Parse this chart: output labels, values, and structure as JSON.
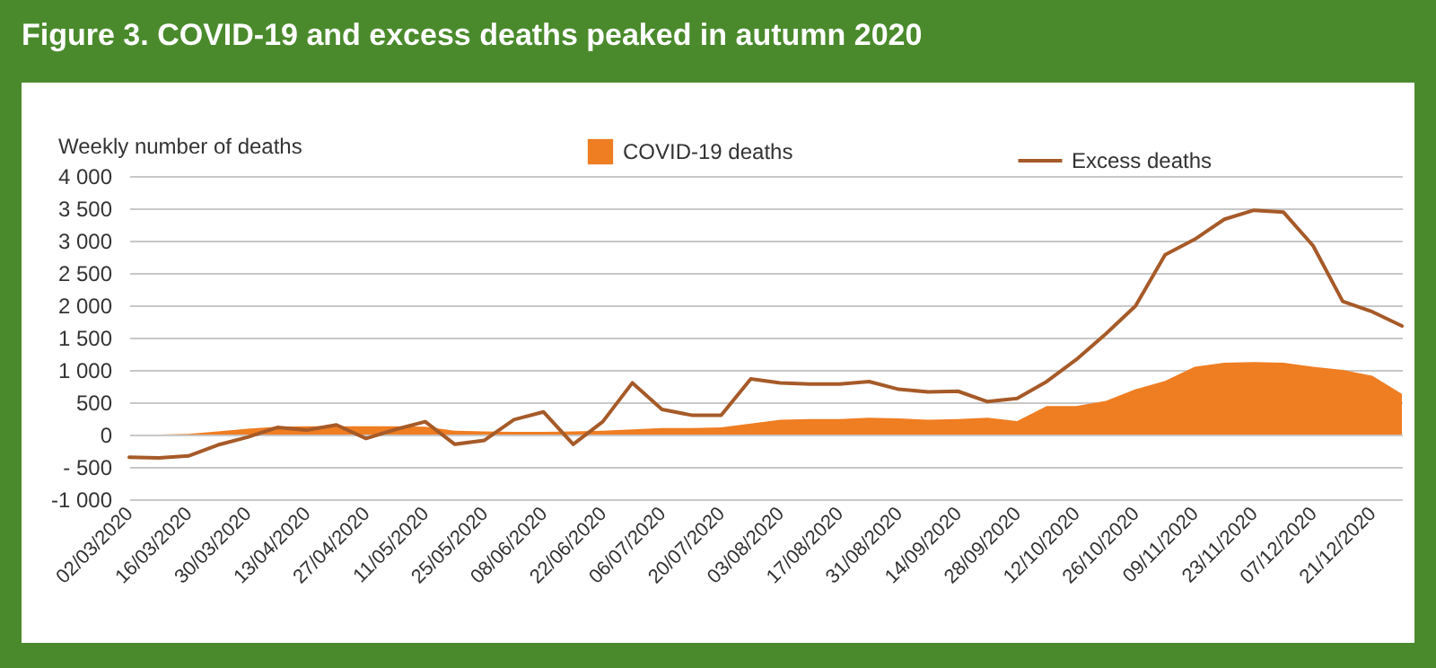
{
  "chart_data": {
    "type": "area",
    "title": "Figure 3. COVID-19 and excess deaths peaked in autumn 2020",
    "ylabel": "Weekly number of deaths",
    "categories": [
      "02/03/2020",
      null,
      "16/03/2020",
      null,
      "30/03/2020",
      null,
      "13/04/2020",
      null,
      "27/04/2020",
      null,
      "11/05/2020",
      null,
      "25/05/2020",
      null,
      "08/06/2020",
      null,
      "22/06/2020",
      null,
      "06/07/2020",
      null,
      "20/07/2020",
      null,
      "03/08/2020",
      null,
      "17/08/2020",
      null,
      "31/08/2020",
      null,
      "14/09/2020",
      null,
      "28/09/2020",
      null,
      "12/10/2020",
      null,
      "26/10/2020",
      null,
      "09/11/2020",
      null,
      "23/11/2020",
      null,
      "07/12/2020",
      null,
      "21/12/2020",
      null
    ],
    "series": [
      {
        "name": "COVID-19 deaths",
        "type": "area",
        "color": "#ef7d22",
        "values": [
          0,
          0,
          10,
          50,
          90,
          120,
          130,
          130,
          130,
          130,
          120,
          60,
          50,
          40,
          40,
          50,
          60,
          80,
          100,
          100,
          110,
          170,
          230,
          240,
          240,
          260,
          250,
          230,
          240,
          260,
          210,
          440,
          440,
          520,
          700,
          830,
          1050,
          1110,
          1120,
          1110,
          1050,
          1000,
          910,
          630
        ]
      },
      {
        "name": "Excess deaths",
        "type": "line",
        "color": "#a65a28",
        "values": [
          -350,
          -360,
          -330,
          -160,
          -40,
          110,
          70,
          150,
          -60,
          80,
          200,
          -150,
          -90,
          230,
          350,
          -150,
          200,
          800,
          390,
          300,
          300,
          860,
          800,
          780,
          780,
          820,
          700,
          660,
          670,
          510,
          560,
          820,
          1160,
          1560,
          1990,
          2780,
          3020,
          3330,
          3470,
          3440,
          2920,
          2060,
          1900,
          1680
        ]
      }
    ],
    "ylim": [
      -1000,
      4000
    ],
    "yticks": [
      {
        "value": -1000,
        "label": "-1 000"
      },
      {
        "value": -500,
        "label": "- 500"
      },
      0,
      500,
      {
        "value": 1000,
        "label": "1 000"
      },
      {
        "value": 1500,
        "label": "1 500"
      },
      {
        "value": 2000,
        "label": "2 000"
      },
      {
        "value": 2500,
        "label": "2 500"
      },
      {
        "value": 3000,
        "label": "3 000"
      },
      {
        "value": 3500,
        "label": "3 500"
      },
      {
        "value": 4000,
        "label": "4 000"
      }
    ],
    "grid": "y",
    "legend": "top"
  }
}
